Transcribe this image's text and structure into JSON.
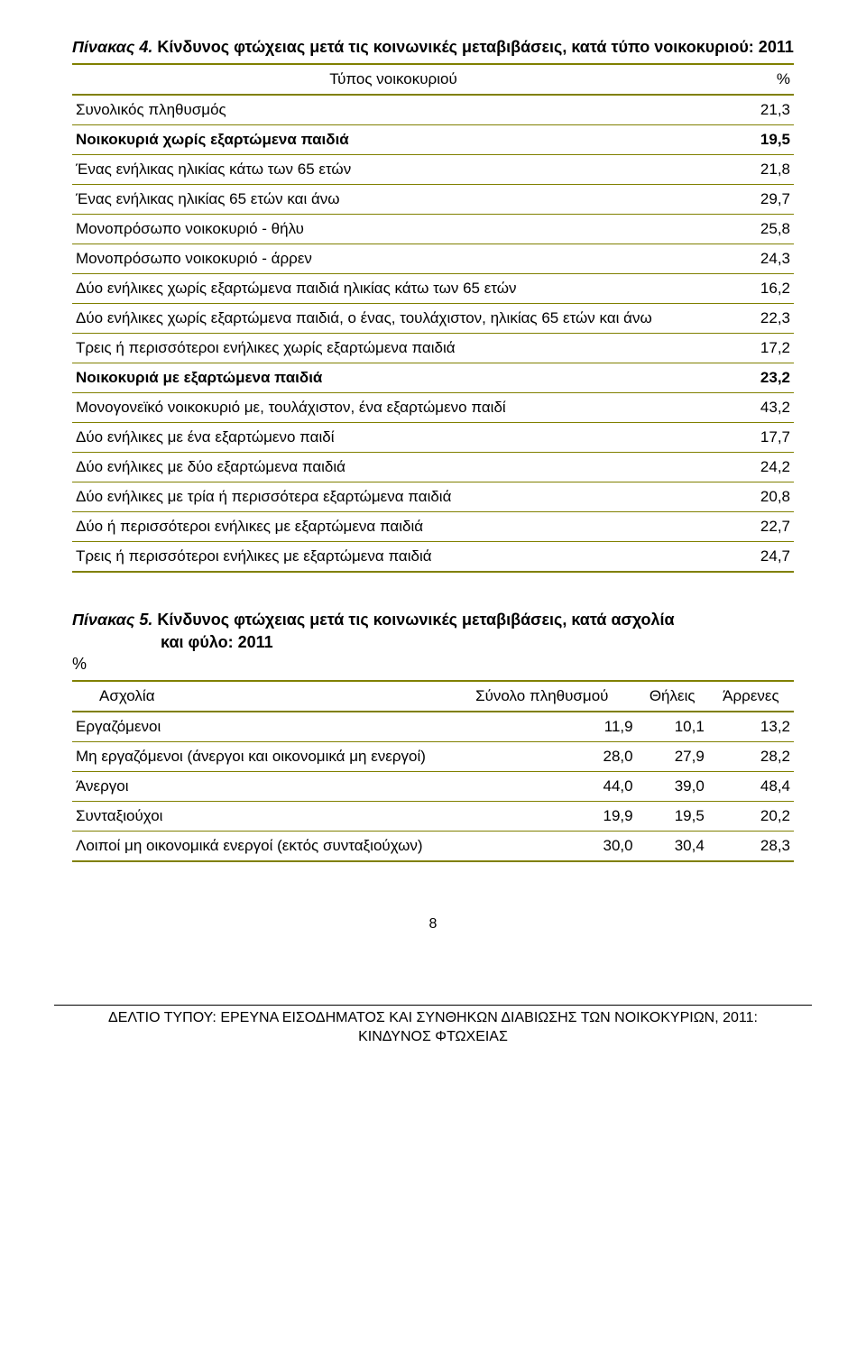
{
  "table4": {
    "caption_prefix": "Πίνακας 4.",
    "caption_title": "Κίνδυνος φτώχειας μετά τις κοινωνικές μεταβιβάσεις, κατά τύπο νοικοκυριού: 2011",
    "header_label": "Τύπος νοικοκυριού",
    "header_value": "%",
    "rows": [
      {
        "label": "Συνολικός πληθυσμός",
        "value": "21,3",
        "bold": false
      },
      {
        "label": "Νοικοκυριά χωρίς εξαρτώμενα παιδιά",
        "value": "19,5",
        "bold": true
      },
      {
        "label": "Ένας ενήλικας ηλικίας κάτω των 65 ετών",
        "value": "21,8",
        "bold": false
      },
      {
        "label": "Ένας ενήλικας ηλικίας 65 ετών και άνω",
        "value": "29,7",
        "bold": false
      },
      {
        "label": "Μονοπρόσωπο νοικοκυριό - θήλυ",
        "value": "25,8",
        "bold": false
      },
      {
        "label": "Μονοπρόσωπο νοικοκυριό - άρρεν",
        "value": "24,3",
        "bold": false
      },
      {
        "label": "Δύο ενήλικες χωρίς εξαρτώμενα παιδιά ηλικίας κάτω των 65 ετών",
        "value": "16,2",
        "bold": false
      },
      {
        "label": "Δύο ενήλικες χωρίς εξαρτώμενα παιδιά, ο ένας, τουλάχιστον, ηλικίας 65 ετών και άνω",
        "value": "22,3",
        "bold": false
      },
      {
        "label": "Τρεις ή περισσότεροι ενήλικες χωρίς εξαρτώμενα παιδιά",
        "value": "17,2",
        "bold": false
      },
      {
        "label": "Νοικοκυριά με εξαρτώμενα παιδιά",
        "value": "23,2",
        "bold": true
      },
      {
        "label": "Μονογονεϊκό νοικοκυριό με, τουλάχιστον, ένα εξαρτώμενο παιδί",
        "value": "43,2",
        "bold": false
      },
      {
        "label": "Δύο ενήλικες με ένα εξαρτώμενο παιδί",
        "value": "17,7",
        "bold": false
      },
      {
        "label": "Δύο ενήλικες με δύο εξαρτώμενα παιδιά",
        "value": "24,2",
        "bold": false
      },
      {
        "label": "Δύο ενήλικες με τρία ή περισσότερα εξαρτώμενα παιδιά",
        "value": "20,8",
        "bold": false
      },
      {
        "label": "Δύο ή περισσότεροι ενήλικες με εξαρτώμενα παιδιά",
        "value": "22,7",
        "bold": false
      },
      {
        "label": "Τρεις ή περισσότεροι ενήλικες με εξαρτώμενα παιδιά",
        "value": "24,7",
        "bold": false
      }
    ]
  },
  "table5": {
    "caption_prefix": "Πίνακας 5.",
    "caption_title_l1": "Κίνδυνος φτώχειας μετά τις κοινωνικές μεταβιβάσεις, κατά ασχολία",
    "caption_title_l2": "και φύλο: 2011",
    "percent_label": "%",
    "col_headers": [
      "Ασχολία",
      "Σύνολο πληθυσμού",
      "Θήλεις",
      "Άρρενες"
    ],
    "rows": [
      {
        "label": "Εργαζόμενοι",
        "total": "11,9",
        "f": "10,1",
        "m": "13,2"
      },
      {
        "label": "Μη εργαζόμενοι (άνεργοι και οικονομικά μη ενεργοί)",
        "total": "28,0",
        "f": "27,9",
        "m": "28,2"
      },
      {
        "label": "Άνεργοι",
        "total": "44,0",
        "f": "39,0",
        "m": "48,4"
      },
      {
        "label": "Συνταξιούχοι",
        "total": "19,9",
        "f": "19,5",
        "m": "20,2"
      },
      {
        "label": "Λοιποί μη οικονομικά ενεργοί (εκτός συνταξιούχων)",
        "total": "30,0",
        "f": "30,4",
        "m": "28,3"
      }
    ]
  },
  "page_number": "8",
  "footer_l1": "ΔΕΛΤΙΟ ΤΥΠΟΥ:  ΕΡΕΥΝΑ ΕΙΣΟΔΗΜΑΤΟΣ ΚΑΙ ΣΥΝΘΗΚΩΝ ΔΙΑΒΙΩΣΗΣ ΤΩΝ ΝΟΙΚΟΚΥΡΙΩΝ, 2011:",
  "footer_l2": "ΚΙΝΔΥΝΟΣ ΦΤΩΧΕΙΑΣ"
}
